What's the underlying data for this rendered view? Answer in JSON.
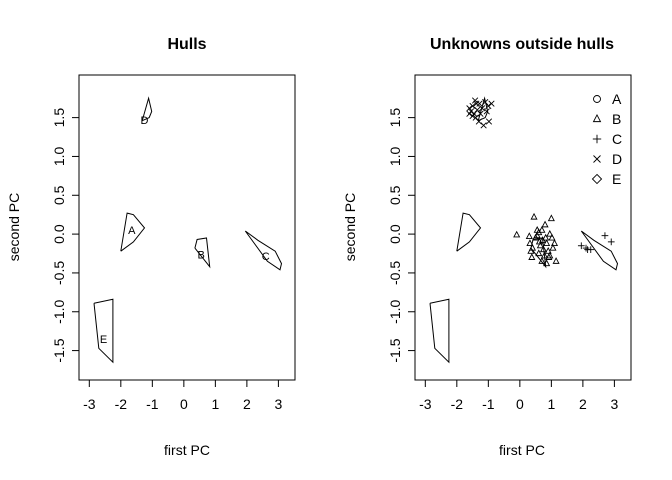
{
  "chart_data": [
    {
      "type": "scatter",
      "title": "Hulls",
      "xlabel": "first PC",
      "ylabel": "second PC",
      "xlim": [
        -3.2,
        3.4
      ],
      "ylim": [
        -1.75,
        1.92
      ],
      "xticks": [
        -3,
        -2,
        -1,
        0,
        1,
        2,
        3
      ],
      "yticks": [
        -1.5,
        -1.0,
        -0.5,
        0.0,
        0.5,
        1.0,
        1.5
      ],
      "xtick_labels": [
        "-3",
        "-2",
        "-1",
        "0",
        "1",
        "2",
        "3"
      ],
      "ytick_labels": [
        "-1.5",
        "-1.0",
        "-0.5",
        "0.0",
        "0.5",
        "1.0",
        "1.5"
      ],
      "hulls": [
        {
          "label": "A",
          "label_pos": [
            -1.65,
            0.05
          ],
          "points": [
            [
              -2.0,
              -0.22
            ],
            [
              -1.8,
              0.27
            ],
            [
              -1.6,
              0.25
            ],
            [
              -1.25,
              0.08
            ],
            [
              -1.6,
              -0.1
            ],
            [
              -2.0,
              -0.22
            ]
          ]
        },
        {
          "label": "B",
          "label_pos": [
            0.55,
            -0.26
          ],
          "points": [
            [
              0.35,
              -0.18
            ],
            [
              0.42,
              -0.07
            ],
            [
              0.72,
              -0.05
            ],
            [
              0.82,
              -0.42
            ],
            [
              0.35,
              -0.18
            ]
          ]
        },
        {
          "label": "C",
          "label_pos": [
            2.6,
            -0.28
          ],
          "points": [
            [
              1.95,
              0.04
            ],
            [
              2.35,
              -0.08
            ],
            [
              2.9,
              -0.22
            ],
            [
              3.1,
              -0.38
            ],
            [
              3.05,
              -0.46
            ],
            [
              2.65,
              -0.35
            ],
            [
              1.95,
              0.04
            ]
          ]
        },
        {
          "label": "D",
          "label_pos": [
            -1.25,
            1.47
          ],
          "points": [
            [
              -1.32,
              1.46
            ],
            [
              -1.12,
              1.75
            ],
            [
              -1.02,
              1.58
            ],
            [
              -1.1,
              1.5
            ],
            [
              -1.32,
              1.46
            ]
          ]
        },
        {
          "label": "E",
          "label_pos": [
            -2.55,
            -1.35
          ],
          "points": [
            [
              -2.85,
              -0.89
            ],
            [
              -2.25,
              -0.84
            ],
            [
              -2.25,
              -1.65
            ],
            [
              -2.7,
              -1.47
            ],
            [
              -2.85,
              -0.89
            ]
          ]
        }
      ]
    },
    {
      "type": "scatter",
      "title": "Unknowns outside hulls",
      "xlabel": "first PC",
      "ylabel": "second PC",
      "xlim": [
        -3.2,
        3.4
      ],
      "ylim": [
        -1.75,
        1.92
      ],
      "xticks": [
        -3,
        -2,
        -1,
        0,
        1,
        2,
        3
      ],
      "yticks": [
        -1.5,
        -1.0,
        -0.5,
        0.0,
        0.5,
        1.0,
        1.5
      ],
      "xtick_labels": [
        "-3",
        "-2",
        "-1",
        "0",
        "1",
        "2",
        "3"
      ],
      "ytick_labels": [
        "-1.5",
        "-1.0",
        "-0.5",
        "0.0",
        "0.5",
        "1.0",
        "1.5"
      ],
      "legend": {
        "position": "top-right",
        "entries": [
          {
            "label": "A",
            "marker": "circle"
          },
          {
            "label": "B",
            "marker": "triangle"
          },
          {
            "label": "C",
            "marker": "plus"
          },
          {
            "label": "D",
            "marker": "cross"
          },
          {
            "label": "E",
            "marker": "diamond"
          }
        ]
      },
      "hulls": [
        {
          "points": [
            [
              -2.0,
              -0.22
            ],
            [
              -1.8,
              0.27
            ],
            [
              -1.6,
              0.25
            ],
            [
              -1.25,
              0.08
            ],
            [
              -1.6,
              -0.1
            ],
            [
              -2.0,
              -0.22
            ]
          ]
        },
        {
          "points": [
            [
              0.35,
              -0.18
            ],
            [
              0.42,
              -0.07
            ],
            [
              0.72,
              -0.05
            ],
            [
              0.82,
              -0.42
            ],
            [
              0.35,
              -0.18
            ]
          ]
        },
        {
          "points": [
            [
              1.95,
              0.04
            ],
            [
              2.35,
              -0.08
            ],
            [
              2.9,
              -0.22
            ],
            [
              3.1,
              -0.38
            ],
            [
              3.05,
              -0.46
            ],
            [
              2.65,
              -0.35
            ],
            [
              1.95,
              0.04
            ]
          ]
        },
        {
          "points": [
            [
              -1.32,
              1.46
            ],
            [
              -1.12,
              1.75
            ],
            [
              -1.02,
              1.58
            ],
            [
              -1.1,
              1.5
            ],
            [
              -1.32,
              1.46
            ]
          ]
        },
        {
          "points": [
            [
              -2.85,
              -0.89
            ],
            [
              -2.25,
              -0.84
            ],
            [
              -2.25,
              -1.65
            ],
            [
              -2.7,
              -1.47
            ],
            [
              -2.85,
              -0.89
            ]
          ]
        }
      ],
      "series": [
        {
          "name": "B",
          "marker": "triangle",
          "points": [
            [
              -0.1,
              -0.01
            ],
            [
              0.3,
              -0.03
            ],
            [
              0.32,
              -0.12
            ],
            [
              0.35,
              -0.22
            ],
            [
              0.38,
              -0.3
            ],
            [
              0.45,
              0.22
            ],
            [
              0.5,
              -0.05
            ],
            [
              0.55,
              -0.02
            ],
            [
              0.6,
              0.02
            ],
            [
              0.62,
              -0.1
            ],
            [
              0.65,
              -0.15
            ],
            [
              0.7,
              0.05
            ],
            [
              0.72,
              -0.08
            ],
            [
              0.75,
              -0.2
            ],
            [
              0.78,
              -0.28
            ],
            [
              0.8,
              0.12
            ],
            [
              0.82,
              -0.05
            ],
            [
              0.85,
              -0.12
            ],
            [
              0.9,
              -0.22
            ],
            [
              0.92,
              -0.3
            ],
            [
              0.95,
              0.0
            ],
            [
              1.0,
              0.2
            ],
            [
              1.02,
              -0.05
            ],
            [
              1.05,
              -0.18
            ],
            [
              1.1,
              -0.12
            ],
            [
              1.15,
              -0.35
            ],
            [
              0.6,
              -0.25
            ],
            [
              0.7,
              -0.35
            ],
            [
              0.55,
              0.05
            ],
            [
              0.85,
              -0.38
            ],
            [
              0.4,
              -0.18
            ],
            [
              0.95,
              -0.28
            ]
          ]
        },
        {
          "name": "C",
          "marker": "plus",
          "points": [
            [
              1.95,
              -0.15
            ],
            [
              2.1,
              -0.18
            ],
            [
              2.15,
              -0.2
            ],
            [
              2.25,
              -0.2
            ],
            [
              2.7,
              -0.02
            ],
            [
              2.9,
              -0.1
            ]
          ]
        },
        {
          "name": "D",
          "marker": "cross",
          "points": [
            [
              -1.6,
              1.62
            ],
            [
              -1.55,
              1.58
            ],
            [
              -1.5,
              1.65
            ],
            [
              -1.45,
              1.55
            ],
            [
              -1.42,
              1.72
            ],
            [
              -1.4,
              1.5
            ],
            [
              -1.35,
              1.6
            ],
            [
              -1.3,
              1.45
            ],
            [
              -1.28,
              1.68
            ],
            [
              -1.25,
              1.55
            ],
            [
              -1.2,
              1.62
            ],
            [
              -1.15,
              1.4
            ],
            [
              -1.1,
              1.7
            ],
            [
              -1.05,
              1.58
            ],
            [
              -1.0,
              1.65
            ],
            [
              -0.98,
              1.45
            ],
            [
              -1.5,
              1.52
            ],
            [
              -1.38,
              1.68
            ],
            [
              -0.9,
              1.68
            ],
            [
              -1.6,
              1.55
            ]
          ]
        }
      ]
    }
  ]
}
